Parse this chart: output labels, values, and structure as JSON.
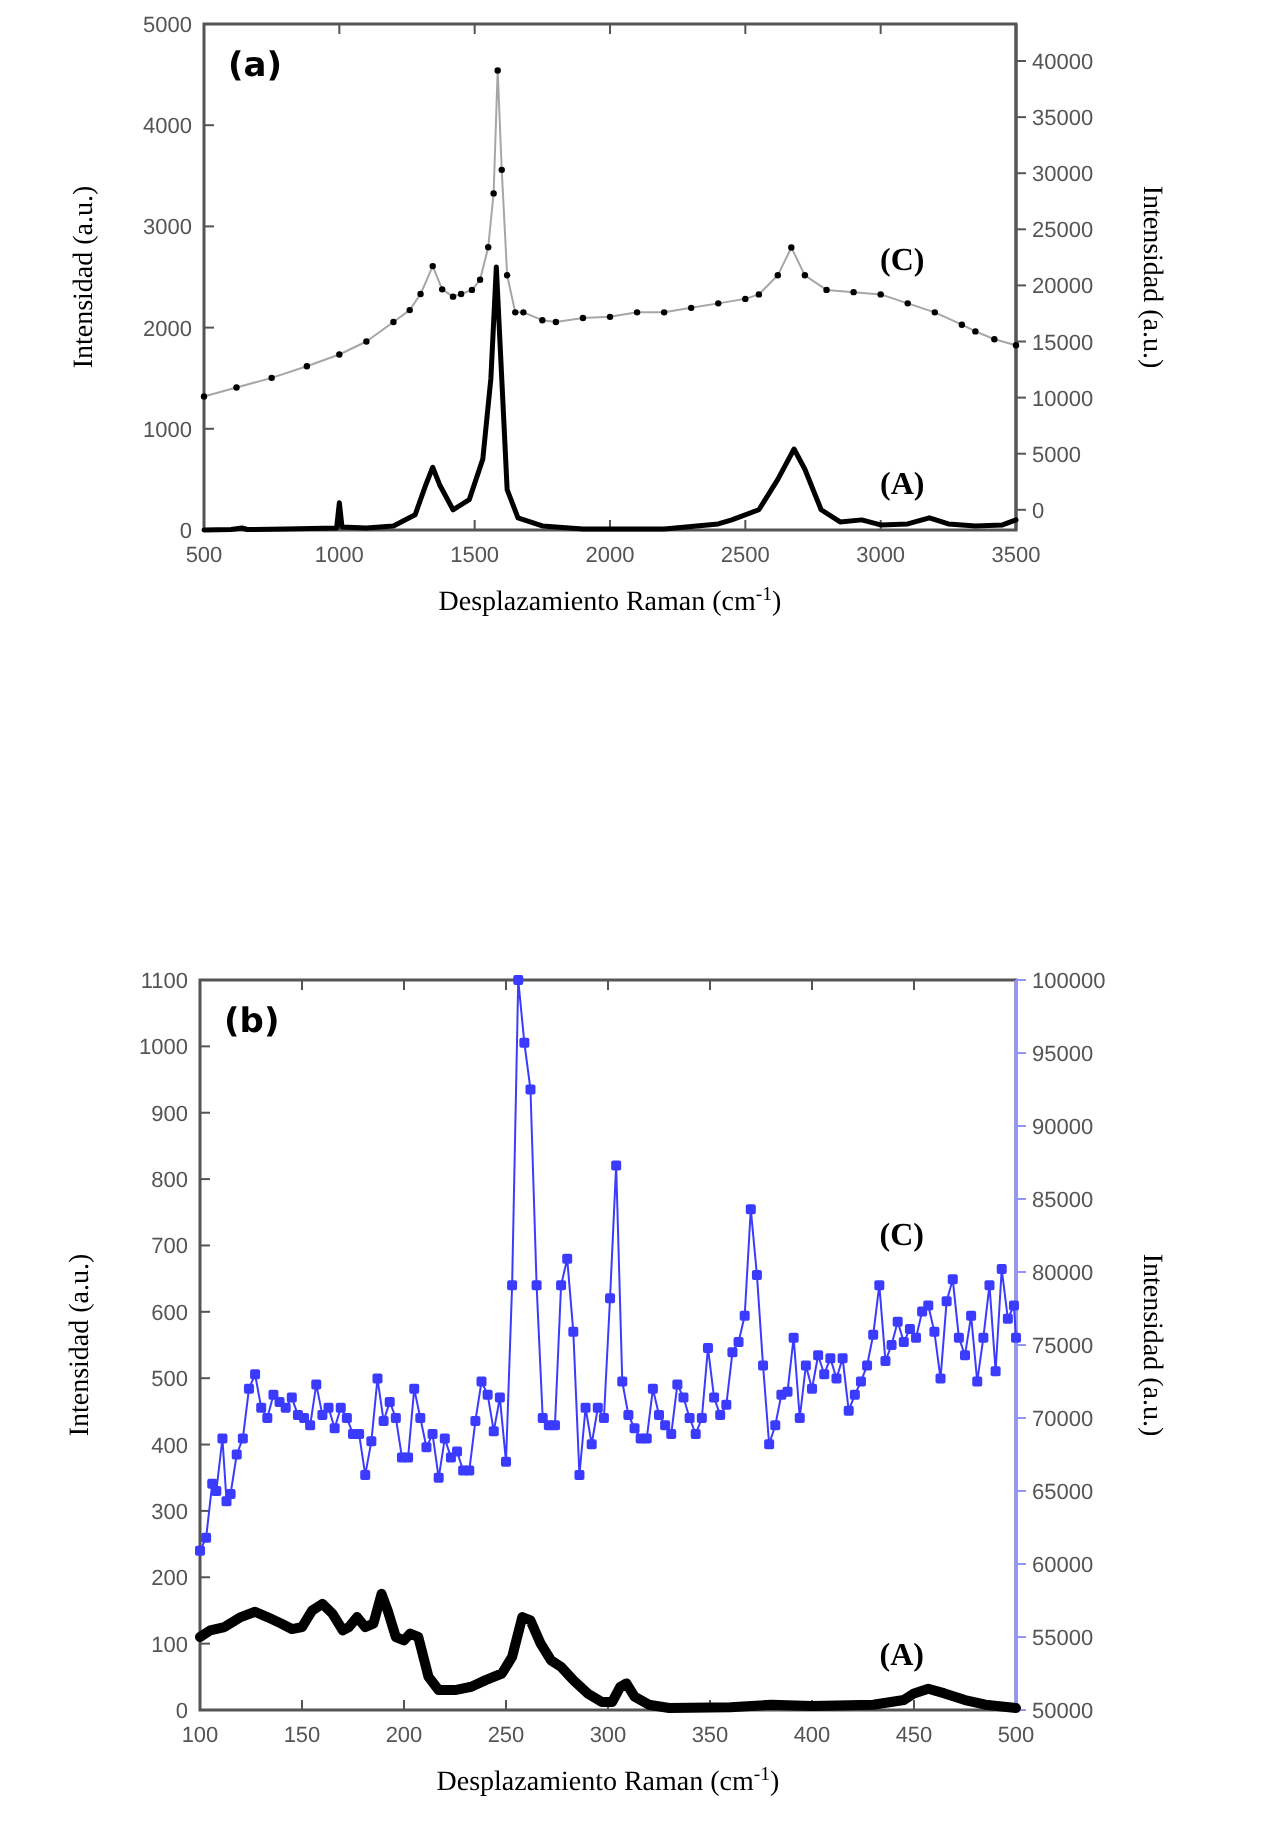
{
  "chart_data": [
    {
      "type": "line",
      "xlabel": "Desplazamiento Raman (cm$^{-1}$)",
      "ylabel": "Intensidad (a.u.)",
      "y2label": "Intensidad (a.u.)",
      "annotations": [
        "(a)"
      ],
      "xlim": [
        500,
        3500
      ],
      "xticks": [
        500,
        1000,
        1500,
        2000,
        2500,
        3000,
        3500
      ],
      "ylim": [
        0,
        5000
      ],
      "yticks": [
        0,
        1000,
        2000,
        3000,
        4000,
        5000
      ],
      "y2lim": [
        -1800,
        43300
      ],
      "y2ticks": [
        0,
        5000,
        10000,
        15000,
        20000,
        25000,
        30000,
        35000,
        40000
      ],
      "series": [
        {
          "name": "(C)",
          "color": "#000000",
          "axis": "y2",
          "marker": "circle",
          "x": [
            500,
            620,
            750,
            880,
            1000,
            1100,
            1200,
            1260,
            1300,
            1345,
            1380,
            1420,
            1450,
            1490,
            1520,
            1550,
            1570,
            1585,
            1600,
            1620,
            1650,
            1680,
            1750,
            1800,
            1900,
            2000,
            2100,
            2200,
            2300,
            2400,
            2500,
            2550,
            2620,
            2670,
            2720,
            2800,
            2900,
            3000,
            3100,
            3200,
            3300,
            3350,
            3420,
            3500
          ],
          "values": [
            10100,
            10900,
            11760,
            12800,
            13840,
            15000,
            16740,
            17800,
            19230,
            21720,
            19650,
            19000,
            19230,
            19600,
            20500,
            23400,
            28200,
            39150,
            30300,
            20900,
            17600,
            17600,
            16900,
            16740,
            17100,
            17200,
            17600,
            17600,
            18000,
            18400,
            18800,
            19200,
            20900,
            23380,
            20900,
            19600,
            19400,
            19200,
            18400,
            17600,
            16500,
            15900,
            15200,
            14670
          ]
        },
        {
          "name": "(A)",
          "color": "#000000",
          "marker": "none",
          "x": [
            500,
            600,
            640,
            660,
            800,
            990,
            1000,
            1010,
            1100,
            1200,
            1280,
            1320,
            1345,
            1370,
            1420,
            1480,
            1530,
            1560,
            1580,
            1600,
            1620,
            1660,
            1750,
            1900,
            2000,
            2200,
            2400,
            2450,
            2550,
            2620,
            2680,
            2720,
            2780,
            2850,
            2930,
            3000,
            3100,
            3180,
            3250,
            3350,
            3450,
            3500
          ],
          "values": [
            0,
            5,
            20,
            5,
            10,
            20,
            270,
            30,
            20,
            40,
            150,
            450,
            620,
            450,
            200,
            300,
            700,
            1500,
            2600,
            1500,
            400,
            120,
            40,
            10,
            10,
            10,
            60,
            100,
            200,
            500,
            800,
            600,
            200,
            80,
            100,
            50,
            60,
            120,
            60,
            40,
            50,
            100
          ]
        }
      ]
    },
    {
      "type": "line",
      "xlabel": "Desplazamiento Raman (cm$^{-1}$)",
      "ylabel": "Intensidad (a.u.)",
      "y2label": "Intensidad (a.u.)",
      "annotations": [
        "(b)"
      ],
      "xlim": [
        100,
        500
      ],
      "xticks": [
        100,
        150,
        200,
        250,
        300,
        350,
        400,
        450,
        500
      ],
      "ylim": [
        0,
        1100
      ],
      "yticks": [
        0,
        100,
        200,
        300,
        400,
        500,
        600,
        700,
        800,
        900,
        1000,
        1100
      ],
      "y2lim": [
        50000,
        100000
      ],
      "y2ticks": [
        50000,
        55000,
        60000,
        65000,
        70000,
        75000,
        80000,
        85000,
        90000,
        95000,
        100000
      ],
      "series": [
        {
          "name": "(C)",
          "color": "#3b3bff",
          "axis": "y2",
          "marker": "square",
          "x": [
            100,
            103,
            106,
            108,
            111,
            113,
            115,
            118,
            121,
            124,
            127,
            130,
            133,
            136,
            139,
            142,
            145,
            148,
            151,
            154,
            157,
            160,
            163,
            166,
            169,
            172,
            175,
            178,
            181,
            184,
            187,
            190,
            193,
            196,
            199,
            202,
            205,
            208,
            211,
            214,
            217,
            220,
            223,
            226,
            229,
            232,
            235,
            238,
            241,
            244,
            247,
            250,
            253,
            256,
            259,
            262,
            265,
            268,
            271,
            274,
            277,
            280,
            283,
            286,
            289,
            292,
            295,
            298,
            301,
            304,
            307,
            310,
            313,
            316,
            319,
            322,
            325,
            328,
            331,
            334,
            337,
            340,
            343,
            346,
            349,
            352,
            355,
            358,
            361,
            364,
            367,
            370,
            373,
            376,
            379,
            382,
            385,
            388,
            391,
            394,
            397,
            400,
            403,
            406,
            409,
            412,
            415,
            418,
            421,
            424,
            427,
            430,
            433,
            436,
            439,
            442,
            445,
            448,
            451,
            454,
            457,
            460,
            463,
            466,
            469,
            472,
            475,
            478,
            481,
            484,
            487,
            490,
            493,
            496,
            499,
            500
          ],
          "values": [
            60900,
            61800,
            65500,
            65000,
            68600,
            64300,
            64800,
            67500,
            68600,
            72000,
            73000,
            70700,
            70000,
            71600,
            71100,
            70700,
            71400,
            70200,
            70000,
            69500,
            72300,
            70200,
            70700,
            69300,
            70700,
            70000,
            68900,
            68900,
            66100,
            68400,
            72700,
            69800,
            71100,
            70000,
            67300,
            67300,
            72000,
            70000,
            68000,
            68900,
            65900,
            68600,
            67300,
            67700,
            66400,
            66400,
            69800,
            72500,
            71600,
            69100,
            71400,
            67000,
            79100,
            100000,
            95700,
            92500,
            79100,
            70000,
            69500,
            69500,
            79100,
            80900,
            75900,
            66100,
            70700,
            68200,
            70700,
            70000,
            78200,
            87300,
            72500,
            70200,
            69300,
            68600,
            68600,
            72000,
            70200,
            69500,
            68900,
            72300,
            71400,
            70000,
            68900,
            70000,
            74800,
            71400,
            70200,
            70900,
            74500,
            75200,
            77000,
            84300,
            79800,
            73600,
            68200,
            69500,
            71600,
            71800,
            75500,
            70000,
            73600,
            72000,
            74300,
            73000,
            74100,
            72700,
            74100,
            70500,
            71600,
            72500,
            73600,
            75700,
            79100,
            73900,
            75000,
            76600,
            75200,
            76100,
            75500,
            77300,
            77700,
            75900,
            72700,
            78000,
            79500,
            75500,
            74300,
            77000,
            72500,
            75500,
            79100,
            73200,
            80200,
            76800,
            77700,
            75500
          ]
        },
        {
          "name": "(A)",
          "color": "#000000",
          "marker": "none",
          "x": [
            100,
            105,
            112,
            120,
            127,
            133,
            140,
            145,
            150,
            155,
            160,
            165,
            170,
            173,
            177,
            181,
            185,
            189,
            192,
            196,
            200,
            203,
            207,
            212,
            217,
            225,
            233,
            240,
            248,
            253,
            258,
            262,
            267,
            272,
            277,
            283,
            290,
            297,
            302,
            306,
            309,
            313,
            320,
            330,
            360,
            380,
            400,
            430,
            445,
            450,
            457,
            465,
            475,
            485,
            500
          ],
          "values": [
            110,
            120,
            125,
            140,
            148,
            140,
            130,
            122,
            125,
            150,
            160,
            145,
            120,
            125,
            140,
            125,
            130,
            175,
            150,
            110,
            105,
            115,
            110,
            50,
            30,
            30,
            35,
            45,
            55,
            80,
            140,
            135,
            100,
            75,
            65,
            45,
            25,
            12,
            12,
            35,
            40,
            20,
            8,
            3,
            4,
            8,
            6,
            8,
            15,
            25,
            32,
            25,
            15,
            8,
            3
          ]
        }
      ]
    }
  ]
}
